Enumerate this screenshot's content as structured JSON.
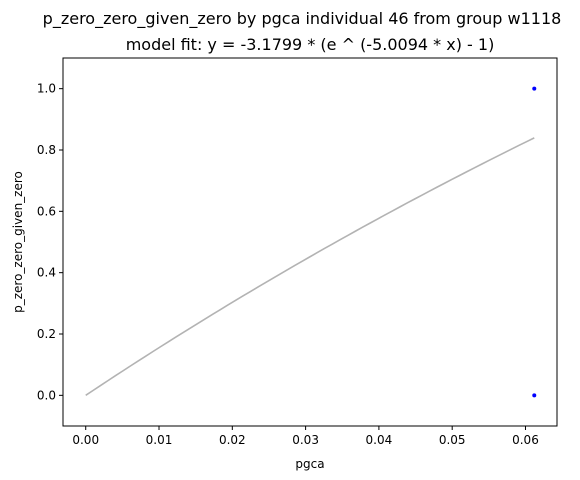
{
  "chart_data": {
    "type": "scatter",
    "title": "p_zero_zero_given_zero by pgca individual 46 from group w1118",
    "subtitle": "model fit: y = -3.1799 * (e ^ (-5.0094 * x) - 1)",
    "xlabel": "pgca",
    "ylabel": "p_zero_zero_given_zero",
    "xlim": [
      -0.0031,
      0.0643
    ],
    "ylim": [
      -0.1,
      1.1
    ],
    "x_ticks": [
      0.0,
      0.01,
      0.02,
      0.03,
      0.04,
      0.05,
      0.06
    ],
    "x_tick_labels": [
      "0.00",
      "0.01",
      "0.02",
      "0.03",
      "0.04",
      "0.05",
      "0.06"
    ],
    "y_ticks": [
      0.0,
      0.2,
      0.4,
      0.6,
      0.8,
      1.0
    ],
    "y_tick_labels": [
      "0.0",
      "0.2",
      "0.4",
      "0.6",
      "0.8",
      "1.0"
    ],
    "grid": false,
    "series": [
      {
        "kind": "points",
        "color": "#0000ff",
        "points": [
          {
            "x": 0.0612,
            "y": 1.0
          },
          {
            "x": 0.0612,
            "y": 0.0
          }
        ]
      },
      {
        "kind": "fit_line",
        "color": "#b3b3b3",
        "equation": {
          "a": -3.1799,
          "b": -5.0094
        },
        "x_range": [
          0.0,
          0.0612
        ]
      }
    ]
  }
}
